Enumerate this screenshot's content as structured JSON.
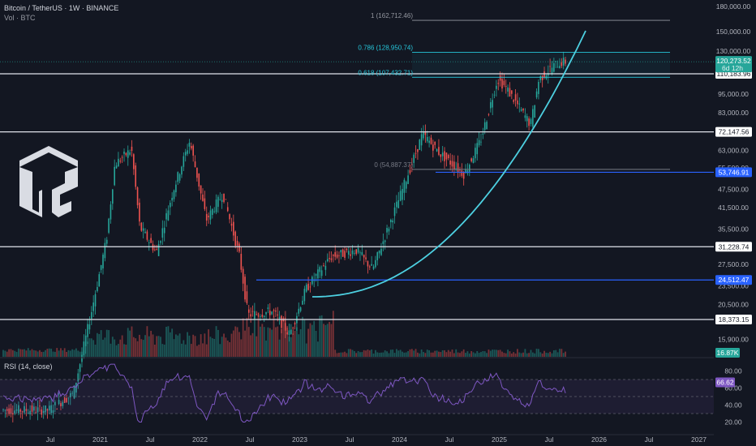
{
  "header": {
    "symbol": "Bitcoin / TetherUS · 1W · BINANCE",
    "volume_label": "Vol · BTC",
    "rsi_label": "RSI (14, close)"
  },
  "colors": {
    "background": "#131722",
    "up": "#26a69a",
    "down": "#ef5350",
    "curve": "#4dd0e1",
    "fib": "#26c6da",
    "support": "#2962ff",
    "rsi": "#7e57c2"
  },
  "icons": {
    "logo": "tc-logo"
  },
  "chart_data": {
    "type": "candlestick",
    "price_axis": {
      "scale": "log",
      "ticks": [
        "180,000.00",
        "150,000.00",
        "130,000.00",
        "110,183.96",
        "95,000.00",
        "83,000.00",
        "72,147.56",
        "63,000.00",
        "55,500.00",
        "53,746.91",
        "47,500.00",
        "41,500.00",
        "35,500.00",
        "31,228.74",
        "27,500.00",
        "24,512.47",
        "23,500.00",
        "20,500.00",
        "18,373.15",
        "15,900.00",
        "16.87K"
      ]
    },
    "time_axis": {
      "ticks": [
        "Jul",
        "2021",
        "Jul",
        "2022",
        "Jul",
        "2023",
        "Jul",
        "2024",
        "Jul",
        "2025",
        "Jul",
        "2026",
        "Jul",
        "2027"
      ]
    },
    "horizontal_levels": [
      {
        "price": 110183.96,
        "label": "110,183.96",
        "style": "white"
      },
      {
        "price": 72147.56,
        "label": "72,147.56",
        "style": "white"
      },
      {
        "price": 31228.74,
        "label": "31,228.74",
        "style": "white"
      },
      {
        "price": 18373.15,
        "label": "18,373.15",
        "style": "white"
      },
      {
        "price": 53746.91,
        "label": "53,746.91",
        "style": "blue"
      },
      {
        "price": 24512.47,
        "label": "24,512.47",
        "style": "blue"
      }
    ],
    "fibonacci": [
      {
        "level": "1",
        "price": 162712.46,
        "label": "1 (162,712.46)"
      },
      {
        "level": "0.786",
        "price": 128950.74,
        "label": "0.786 (128,950.74)"
      },
      {
        "level": "0.618",
        "price": 107432.71,
        "label": "0.618 (107,432.71)"
      },
      {
        "level": "0",
        "price": 54887.37,
        "label": "0 (54,887.37)"
      }
    ],
    "current_price": {
      "price": 120273.52,
      "label": "120,273.52",
      "countdown": "6d 12h"
    },
    "volume_last": "16.87K",
    "rsi": {
      "period": 14,
      "current": "66.62",
      "ticks": [
        "80.00",
        "60.00",
        "40.00",
        "20.00"
      ],
      "upper": 70,
      "lower": 30
    },
    "price_path": [
      [
        "2020-06",
        9500
      ],
      [
        "2020-09",
        10700
      ],
      [
        "2020-11",
        18500
      ],
      [
        "2021-01",
        33000
      ],
      [
        "2021-02",
        57000
      ],
      [
        "2021-04",
        63500
      ],
      [
        "2021-05",
        36000
      ],
      [
        "2021-07",
        30000
      ],
      [
        "2021-09",
        47000
      ],
      [
        "2021-11",
        67500
      ],
      [
        "2022-01",
        38000
      ],
      [
        "2022-03",
        46000
      ],
      [
        "2022-05",
        29000
      ],
      [
        "2022-06",
        19000
      ],
      [
        "2022-09",
        19500
      ],
      [
        "2022-11",
        16500
      ],
      [
        "2023-01",
        23000
      ],
      [
        "2023-04",
        29000
      ],
      [
        "2023-07",
        30500
      ],
      [
        "2023-09",
        26500
      ],
      [
        "2023-12",
        43000
      ],
      [
        "2024-03",
        71000
      ],
      [
        "2024-05",
        62000
      ],
      [
        "2024-08",
        53000
      ],
      [
        "2024-10",
        68000
      ],
      [
        "2024-12",
        106000
      ],
      [
        "2025-01",
        100000
      ],
      [
        "2025-04",
        76000
      ],
      [
        "2025-05",
        106000
      ],
      [
        "2025-07",
        118000
      ],
      [
        "2025-08",
        120273
      ]
    ]
  }
}
